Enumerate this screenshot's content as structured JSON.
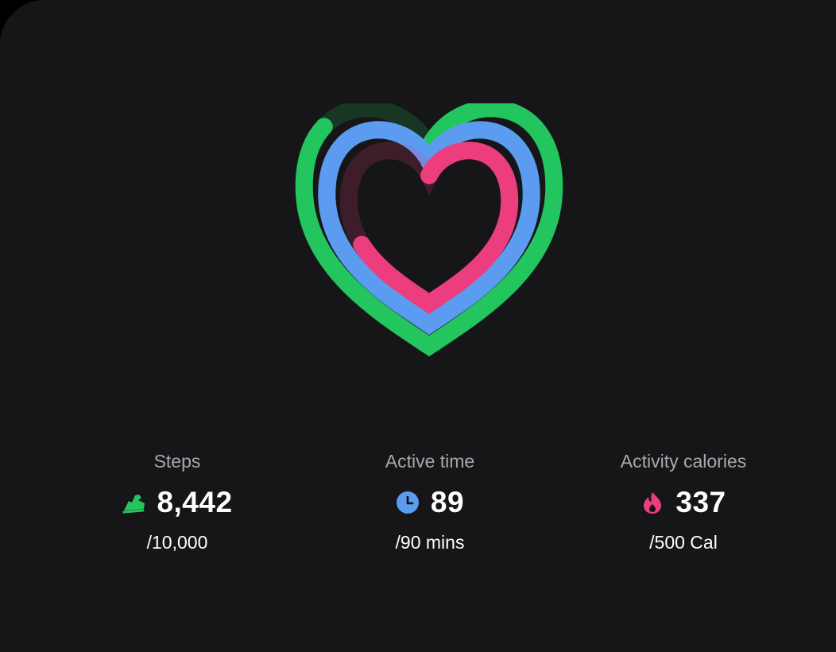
{
  "colors": {
    "steps": "#22c55e",
    "active_time": "#5b9cf0",
    "calories": "#ec3d7f"
  },
  "progress": {
    "steps_fraction": 0.8442,
    "active_time_fraction": 0.989,
    "calories_fraction": 0.674
  },
  "stats": [
    {
      "label": "Steps",
      "value": "8,442",
      "goal": "/10,000",
      "icon": "shoe-icon"
    },
    {
      "label": "Active time",
      "value": "89",
      "goal": "/90 mins",
      "icon": "clock-icon"
    },
    {
      "label": "Activity calories",
      "value": "337",
      "goal": "/500 Cal",
      "icon": "flame-icon"
    }
  ]
}
